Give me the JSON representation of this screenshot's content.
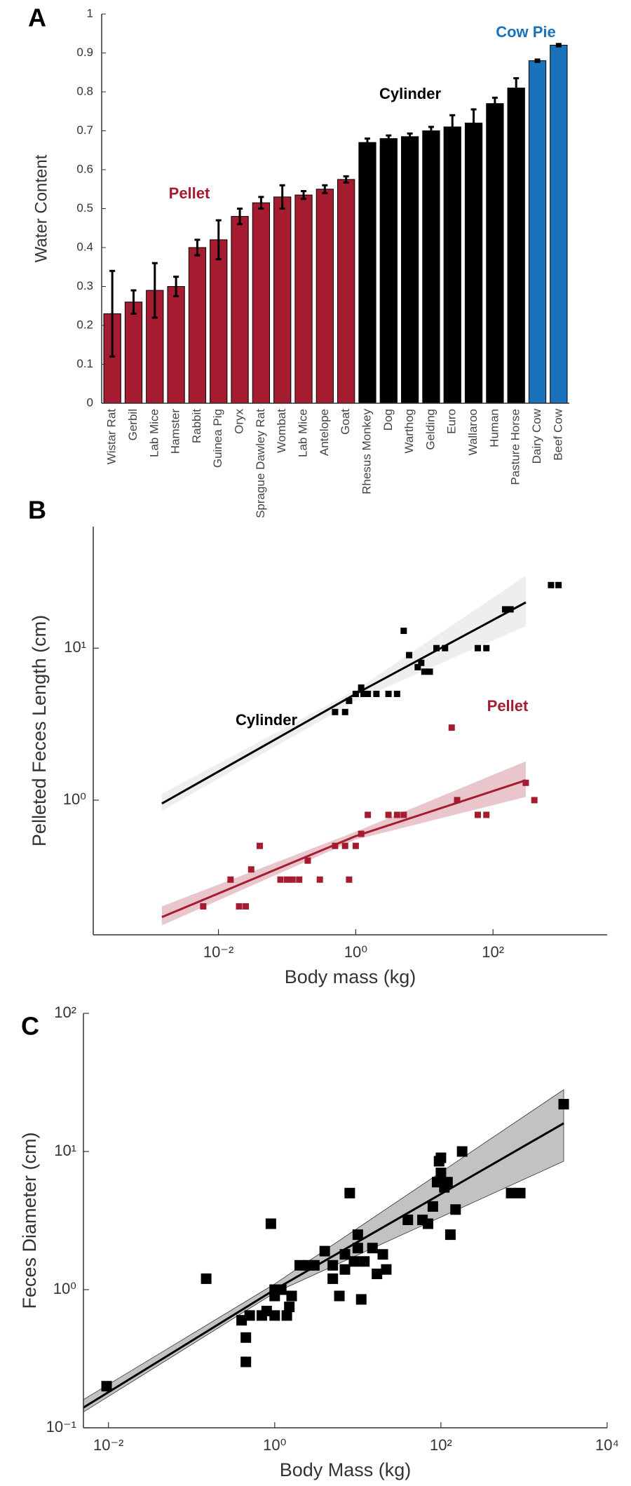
{
  "chart_data": [
    {
      "type": "bar",
      "panel": "A",
      "ylabel": "Water Content",
      "categories": [
        "Wistar Rat",
        "Gerbil",
        "Lab Mice",
        "Hamster",
        "Rabbit",
        "Guinea Pig",
        "Oryx",
        "Sprague Dawley Rat",
        "Wombat",
        "Lab Mice",
        "Antelope",
        "Goat",
        "Rhesus Monkey",
        "Dog",
        "Warthog",
        "Gelding",
        "Euro",
        "Wallaroo",
        "Human",
        "Pasture Horse",
        "Dairy Cow",
        "Beef Cow"
      ],
      "series": [
        {
          "name": "Pellet",
          "color": "#a51c30",
          "values": [
            0.23,
            0.26,
            0.29,
            0.3,
            0.4,
            0.42,
            0.48,
            0.515,
            0.53,
            0.535,
            0.55,
            0.575,
            null,
            null,
            null,
            null,
            null,
            null,
            null,
            null,
            null,
            null
          ],
          "errors": [
            0.11,
            0.03,
            0.07,
            0.025,
            0.02,
            0.05,
            0.02,
            0.015,
            0.03,
            0.01,
            0.01,
            0.008,
            null,
            null,
            null,
            null,
            null,
            null,
            null,
            null,
            null,
            null
          ]
        },
        {
          "name": "Cylinder",
          "color": "#000000",
          "values": [
            null,
            null,
            null,
            null,
            null,
            null,
            null,
            null,
            null,
            null,
            null,
            null,
            0.67,
            0.68,
            0.685,
            0.7,
            0.71,
            0.72,
            0.77,
            0.81,
            null,
            null
          ],
          "errors": [
            null,
            null,
            null,
            null,
            null,
            null,
            null,
            null,
            null,
            null,
            null,
            null,
            0.01,
            0.008,
            0.008,
            0.01,
            0.03,
            0.035,
            0.015,
            0.025,
            null,
            null
          ]
        },
        {
          "name": "Cow Pie",
          "color": "#1a72bb",
          "values": [
            null,
            null,
            null,
            null,
            null,
            null,
            null,
            null,
            null,
            null,
            null,
            null,
            null,
            null,
            null,
            null,
            null,
            null,
            null,
            null,
            0.88,
            0.92
          ],
          "errors": [
            null,
            null,
            null,
            null,
            null,
            null,
            null,
            null,
            null,
            null,
            null,
            null,
            null,
            null,
            null,
            null,
            null,
            null,
            null,
            null,
            0.003,
            0.003
          ]
        }
      ],
      "ylim": [
        0,
        1
      ],
      "yticks": [
        0,
        0.1,
        0.2,
        0.3,
        0.4,
        0.5,
        0.6,
        0.7,
        0.8,
        0.9,
        1
      ]
    },
    {
      "type": "scatter",
      "panel": "B",
      "xlabel": "Body mass (kg)",
      "ylabel": "Pelleted Feces Length (cm)",
      "xscale": "log",
      "yscale": "log",
      "xlim": [
        0.00015,
        4600
      ],
      "ylim": [
        0.13,
        63
      ],
      "xticks": [
        {
          "value": 0.01,
          "label": "10⁻²"
        },
        {
          "value": 1,
          "label": "10⁰"
        },
        {
          "value": 100,
          "label": "10²"
        }
      ],
      "yticks": [
        {
          "value": 1,
          "label": "10⁰"
        },
        {
          "value": 10,
          "label": "10¹"
        }
      ],
      "series": [
        {
          "name": "Cylinder",
          "color": "#000000",
          "x": [
            0.5,
            0.7,
            0.8,
            1.0,
            1.2,
            1.3,
            1.5,
            2,
            3,
            4,
            5,
            6,
            8,
            9,
            10,
            12,
            15,
            20,
            60,
            80,
            150,
            180,
            700,
            900
          ],
          "y": [
            3.8,
            3.8,
            4.5,
            5,
            5.5,
            5,
            5,
            5,
            5,
            5,
            13,
            9,
            7.5,
            8,
            7,
            7,
            10,
            10,
            10,
            10,
            18,
            18,
            26,
            26
          ],
          "fit": {
            "x": [
              0.0015,
              1,
              300
            ],
            "y": [
              0.95,
              5,
              20
            ],
            "lower": [
              0.85,
              4.5,
              14
            ],
            "upper": [
              1.1,
              5.3,
              30
            ]
          }
        },
        {
          "name": "Pellet",
          "color": "#a51c30",
          "x": [
            0.006,
            0.015,
            0.02,
            0.025,
            0.03,
            0.04,
            0.08,
            0.1,
            0.12,
            0.15,
            0.2,
            0.3,
            0.5,
            0.7,
            0.8,
            1,
            1.2,
            1.5,
            3,
            4,
            5,
            25,
            30,
            60,
            80,
            300,
            400
          ],
          "y": [
            0.2,
            0.3,
            0.2,
            0.2,
            0.35,
            0.5,
            0.3,
            0.3,
            0.3,
            0.3,
            0.4,
            0.3,
            0.5,
            0.5,
            0.3,
            0.5,
            0.6,
            0.8,
            0.8,
            0.8,
            0.8,
            3,
            1,
            0.8,
            0.8,
            1.3,
            1.0
          ],
          "fit": {
            "x": [
              0.0015,
              1,
              300
            ],
            "y": [
              0.17,
              0.58,
              1.35
            ],
            "lower": [
              0.15,
              0.55,
              1.05
            ],
            "upper": [
              0.2,
              0.62,
              1.8
            ]
          }
        }
      ]
    },
    {
      "type": "scatter",
      "panel": "C",
      "xlabel": "Body Mass (kg)",
      "ylabel": "Feces Diameter (cm)",
      "xscale": "log",
      "yscale": "log",
      "xlim": [
        0.005,
        10000
      ],
      "ylim": [
        0.1,
        100
      ],
      "xticks": [
        {
          "value": 0.01,
          "label": "10⁻²"
        },
        {
          "value": 1,
          "label": "10⁰"
        },
        {
          "value": 100,
          "label": "10²"
        },
        {
          "value": 10000,
          "label": "10⁴"
        }
      ],
      "yticks": [
        {
          "value": 0.1,
          "label": "10⁻¹"
        },
        {
          "value": 1,
          "label": "10⁰"
        },
        {
          "value": 10,
          "label": "10¹"
        },
        {
          "value": 100,
          "label": "10²"
        }
      ],
      "series": [
        {
          "color": "#000000",
          "x": [
            0.0095,
            0.15,
            0.4,
            0.45,
            0.45,
            0.5,
            0.7,
            0.8,
            0.9,
            1,
            1,
            1,
            1.2,
            1.4,
            1.5,
            1.6,
            2,
            2.5,
            3,
            4,
            5,
            5,
            6,
            7,
            7,
            8,
            9,
            10,
            10,
            11,
            12,
            15,
            17,
            20,
            22,
            40,
            60,
            70,
            80,
            90,
            95,
            100,
            100,
            110,
            120,
            130,
            150,
            180,
            700,
            900,
            3000
          ],
          "y": [
            0.2,
            1.2,
            0.6,
            0.45,
            0.3,
            0.65,
            0.65,
            0.7,
            3,
            0.9,
            0.65,
            1,
            1,
            0.65,
            0.75,
            0.9,
            1.5,
            1.5,
            1.5,
            1.9,
            1.2,
            1.5,
            0.9,
            1.4,
            1.8,
            5,
            1.6,
            2.5,
            2,
            0.85,
            1.6,
            2,
            1.3,
            1.8,
            1.4,
            3.2,
            3.2,
            3,
            4,
            6,
            8.5,
            9,
            7,
            5.5,
            6,
            2.5,
            3.8,
            10,
            5,
            5,
            22
          ],
          "fit": {
            "x": [
              0.005,
              1,
              3000
            ],
            "y": [
              0.14,
              1.0,
              16
            ],
            "lower": [
              0.13,
              0.95,
              8.5
            ],
            "upper": [
              0.16,
              1.1,
              28
            ]
          }
        }
      ]
    }
  ]
}
